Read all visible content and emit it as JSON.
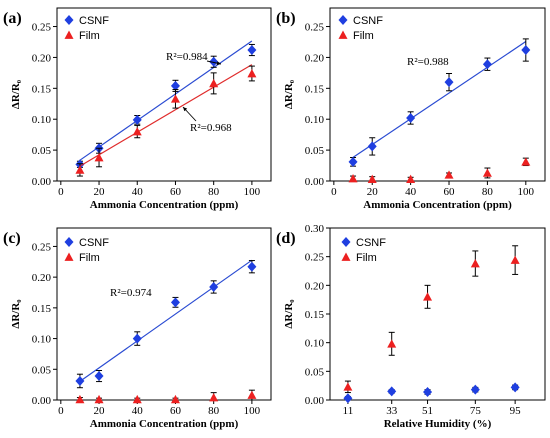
{
  "chart_data": [
    {
      "panel_label": "(a)",
      "type": "scatter",
      "xlabel": "Ammonia Concentration (ppm)",
      "ylabel": "ΔR/R₀",
      "xlim": [
        -2,
        110
      ],
      "ylim": [
        0,
        0.28
      ],
      "xticks": [
        0,
        20,
        40,
        60,
        80,
        100
      ],
      "xtick_labels": [
        "0",
        "20",
        "40",
        "60",
        "80",
        "100"
      ],
      "yticks": [
        0,
        0.05,
        0.1,
        0.15,
        0.2,
        0.25
      ],
      "ytick_labels": [
        "0.00",
        "0.05",
        "0.10",
        "0.15",
        "0.20",
        "0.25"
      ],
      "legend": "top-left",
      "series": [
        {
          "name": "CSNF",
          "marker": "diamond",
          "color": "#1f3fe0",
          "x": [
            10,
            20,
            40,
            60,
            80,
            100
          ],
          "y": [
            0.027,
            0.053,
            0.099,
            0.154,
            0.193,
            0.212
          ],
          "yerr": [
            0.005,
            0.008,
            0.007,
            0.009,
            0.009,
            0.009
          ],
          "fit": {
            "label": "R²=0.984",
            "color": "#2a4bd2"
          }
        },
        {
          "name": "Film",
          "marker": "triangle",
          "color": "#ec2020",
          "x": [
            10,
            20,
            40,
            60,
            80,
            100
          ],
          "y": [
            0.018,
            0.038,
            0.08,
            0.133,
            0.158,
            0.174
          ],
          "yerr": [
            0.01,
            0.015,
            0.01,
            0.015,
            0.017,
            0.012
          ],
          "fit": {
            "label": "R²=0.968",
            "color": "#e02c2c"
          }
        }
      ]
    },
    {
      "panel_label": "(b)",
      "type": "scatter",
      "xlabel": "Ammonia Concentration (ppm)",
      "ylabel": "ΔR/R₀",
      "xlim": [
        -2,
        110
      ],
      "ylim": [
        0,
        0.28
      ],
      "xticks": [
        0,
        20,
        40,
        60,
        80,
        100
      ],
      "xtick_labels": [
        "0",
        "20",
        "40",
        "60",
        "80",
        "100"
      ],
      "yticks": [
        0,
        0.05,
        0.1,
        0.15,
        0.2,
        0.25
      ],
      "ytick_labels": [
        "0.00",
        "0.05",
        "0.10",
        "0.15",
        "0.20",
        "0.25"
      ],
      "legend": "top-left",
      "series": [
        {
          "name": "CSNF",
          "marker": "diamond",
          "color": "#1f3fe0",
          "x": [
            10,
            20,
            40,
            60,
            80,
            100
          ],
          "y": [
            0.031,
            0.056,
            0.102,
            0.16,
            0.189,
            0.212
          ],
          "yerr": [
            0.007,
            0.014,
            0.01,
            0.014,
            0.01,
            0.018
          ],
          "fit": {
            "label": "R²=0.988",
            "color": "#2a4bd2"
          }
        },
        {
          "name": "Film",
          "marker": "triangle",
          "color": "#ec2020",
          "x": [
            10,
            20,
            40,
            60,
            80,
            100
          ],
          "y": [
            0.004,
            0.003,
            0.003,
            0.01,
            0.013,
            0.031
          ],
          "yerr": [
            0.004,
            0.004,
            0.003,
            0.003,
            0.008,
            0.006
          ]
        }
      ]
    },
    {
      "panel_label": "(c)",
      "type": "scatter",
      "xlabel": "Ammonia Concentration (ppm)",
      "ylabel": "ΔR/R₀",
      "xlim": [
        -2,
        110
      ],
      "ylim": [
        0,
        0.28
      ],
      "xticks": [
        0,
        20,
        40,
        60,
        80,
        100
      ],
      "xtick_labels": [
        "0",
        "20",
        "40",
        "60",
        "80",
        "100"
      ],
      "yticks": [
        0,
        0.05,
        0.1,
        0.15,
        0.2,
        0.25
      ],
      "ytick_labels": [
        "0.00",
        "0.05",
        "0.10",
        "0.15",
        "0.20",
        "0.25"
      ],
      "legend": "top-left",
      "series": [
        {
          "name": "CSNF",
          "marker": "diamond",
          "color": "#1f3fe0",
          "x": [
            10,
            20,
            40,
            60,
            80,
            100
          ],
          "y": [
            0.031,
            0.039,
            0.1,
            0.159,
            0.184,
            0.217
          ],
          "yerr": [
            0.011,
            0.009,
            0.011,
            0.008,
            0.01,
            0.01
          ],
          "fit": {
            "label": "R²=0.974",
            "color": "#2a4bd2"
          }
        },
        {
          "name": "Film",
          "marker": "triangle",
          "color": "#ec2020",
          "x": [
            10,
            20,
            40,
            60,
            80,
            100
          ],
          "y": [
            0.001,
            0.001,
            0.001,
            0.001,
            0.004,
            0.008
          ],
          "yerr": [
            0.003,
            0.002,
            0.002,
            0.002,
            0.008,
            0.008
          ]
        }
      ]
    },
    {
      "panel_label": "(d)",
      "type": "scatter",
      "xlabel": "Relative Humidity (%)",
      "ylabel": "ΔR/R₀",
      "xlim": [
        2,
        110
      ],
      "ylim": [
        0,
        0.3
      ],
      "xticks": [
        11,
        33,
        51,
        75,
        95
      ],
      "xtick_labels": [
        "11",
        "33",
        "51",
        "75",
        "95"
      ],
      "yticks": [
        0,
        0.05,
        0.1,
        0.15,
        0.2,
        0.25,
        0.3
      ],
      "ytick_labels": [
        "0.00",
        "0.05",
        "0.10",
        "0.15",
        "0.20",
        "0.25",
        "0.30"
      ],
      "legend": "top-left",
      "series": [
        {
          "name": "CSNF",
          "marker": "diamond",
          "color": "#1f3fe0",
          "x": [
            11,
            33,
            51,
            75,
            95
          ],
          "y": [
            0.003,
            0.015,
            0.014,
            0.018,
            0.022
          ],
          "yerr": [
            0.003,
            0.003,
            0.004,
            0.004,
            0.004
          ]
        },
        {
          "name": "Film",
          "marker": "triangle",
          "color": "#ec2020",
          "x": [
            11,
            33,
            51,
            75,
            95
          ],
          "y": [
            0.023,
            0.098,
            0.18,
            0.238,
            0.244
          ],
          "yerr": [
            0.01,
            0.02,
            0.02,
            0.022,
            0.025
          ]
        }
      ]
    }
  ]
}
